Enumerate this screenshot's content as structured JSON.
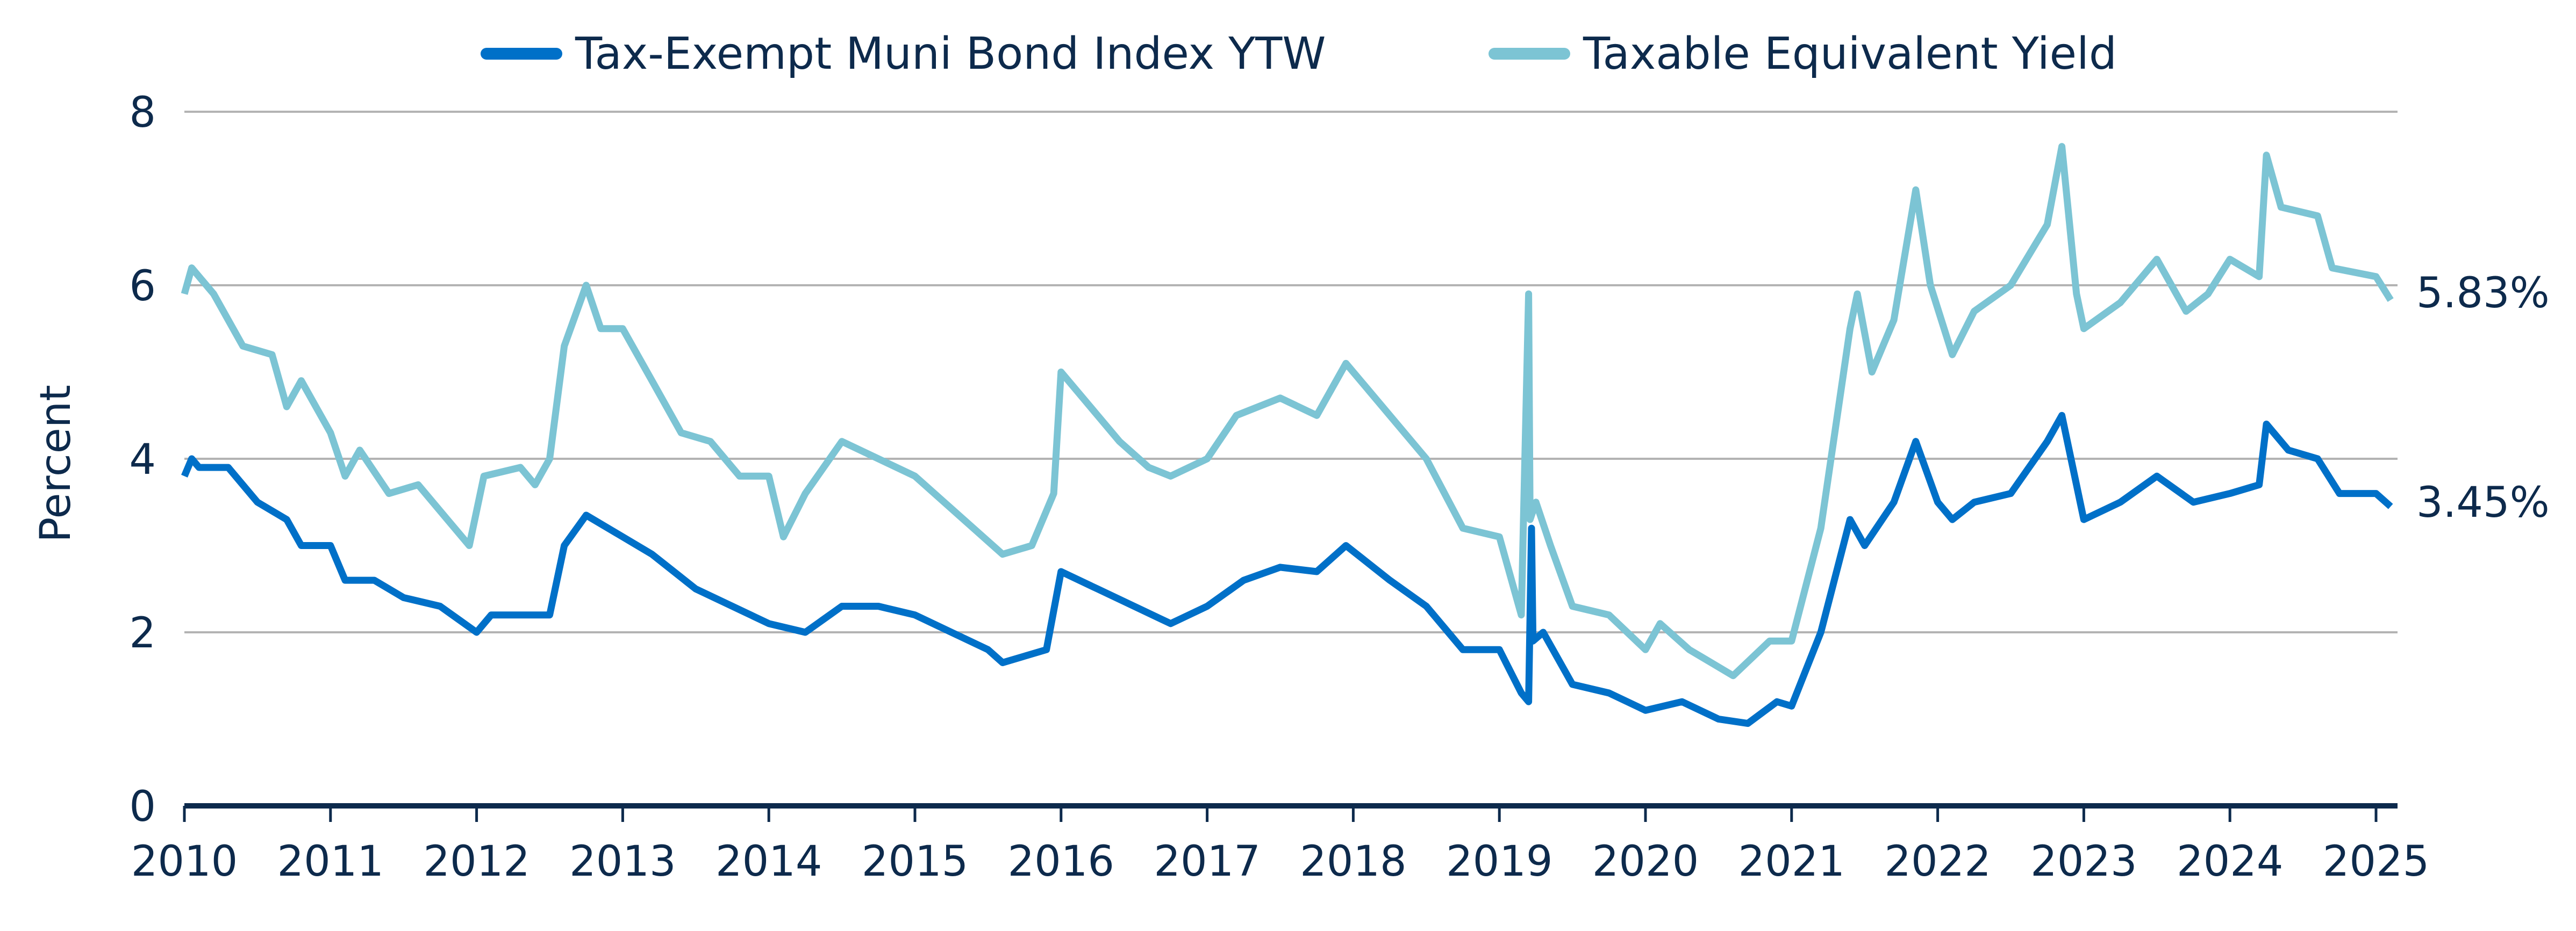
{
  "chart_data": {
    "type": "line",
    "title": "",
    "xlabel": "",
    "ylabel": "Percent",
    "xlim": [
      2010,
      2025.12
    ],
    "ylim": [
      0,
      8
    ],
    "yticks": [
      "0",
      "2",
      "4",
      "6",
      "8"
    ],
    "xticks": [
      "2010",
      "2011",
      "2012",
      "2013",
      "2014",
      "2015",
      "2016",
      "2017",
      "2018",
      "2019",
      "2020",
      "2021",
      "2022",
      "2023",
      "2024",
      "2025"
    ],
    "grid": "horizontal",
    "legend_position": "top",
    "end_labels": [
      "5.83%",
      "3.45%"
    ],
    "series": [
      {
        "name": "Tax-Exempt Muni Bond Index YTW",
        "color": "#0070c8",
        "x": [
          2010.0,
          2010.05,
          2010.1,
          2010.3,
          2010.5,
          2010.7,
          2010.8,
          2011.0,
          2011.1,
          2011.3,
          2011.5,
          2011.75,
          2012.0,
          2012.1,
          2012.4,
          2012.5,
          2012.6,
          2012.75,
          2013.0,
          2013.2,
          2013.5,
          2013.75,
          2014.0,
          2014.25,
          2014.5,
          2014.75,
          2015.0,
          2015.25,
          2015.5,
          2015.6,
          2015.9,
          2016.0,
          2016.25,
          2016.5,
          2016.75,
          2017.0,
          2017.25,
          2017.5,
          2017.75,
          2017.95,
          2018.25,
          2018.5,
          2018.75,
          2019.0,
          2019.15,
          2019.2,
          2019.22,
          2019.23,
          2019.3,
          2019.5,
          2019.75,
          2020.0,
          2020.25,
          2020.5,
          2020.7,
          2020.9,
          2021.0,
          2021.2,
          2021.4,
          2021.5,
          2021.7,
          2021.85,
          2022.0,
          2022.1,
          2022.25,
          2022.5,
          2022.75,
          2022.85,
          2023.0,
          2023.25,
          2023.5,
          2023.75,
          2024.0,
          2024.2,
          2024.25,
          2024.4,
          2024.6,
          2024.75,
          2025.0,
          2025.1
        ],
        "y": [
          3.8,
          4.0,
          3.9,
          3.9,
          3.5,
          3.3,
          3.0,
          3.0,
          2.6,
          2.6,
          2.4,
          2.3,
          2.0,
          2.2,
          2.2,
          2.2,
          3.0,
          3.35,
          3.1,
          2.9,
          2.5,
          2.3,
          2.1,
          2.0,
          2.3,
          2.3,
          2.2,
          2.0,
          1.8,
          1.65,
          1.8,
          2.7,
          2.5,
          2.3,
          2.1,
          2.3,
          2.6,
          2.75,
          2.7,
          3.0,
          2.6,
          2.3,
          1.8,
          1.8,
          1.3,
          1.2,
          3.2,
          1.9,
          2.0,
          1.4,
          1.3,
          1.1,
          1.2,
          1.0,
          0.95,
          1.2,
          1.15,
          2.0,
          3.3,
          3.0,
          3.5,
          4.2,
          3.5,
          3.3,
          3.5,
          3.6,
          4.2,
          4.5,
          3.3,
          3.5,
          3.8,
          3.5,
          3.6,
          3.7,
          4.4,
          4.1,
          4.0,
          3.6,
          3.6,
          3.45
        ]
      },
      {
        "name": "Taxable Equivalent Yield",
        "color": "#7cc4d4",
        "x": [
          2010.0,
          2010.05,
          2010.2,
          2010.4,
          2010.6,
          2010.7,
          2010.8,
          2011.0,
          2011.1,
          2011.2,
          2011.4,
          2011.6,
          2011.8,
          2011.95,
          2012.05,
          2012.3,
          2012.4,
          2012.5,
          2012.6,
          2012.75,
          2012.85,
          2013.0,
          2013.2,
          2013.4,
          2013.6,
          2013.8,
          2014.0,
          2014.1,
          2014.25,
          2014.5,
          2014.75,
          2015.0,
          2015.2,
          2015.4,
          2015.6,
          2015.8,
          2015.95,
          2016.0,
          2016.25,
          2016.4,
          2016.6,
          2016.75,
          2017.0,
          2017.2,
          2017.5,
          2017.75,
          2017.95,
          2018.25,
          2018.5,
          2018.75,
          2019.0,
          2019.15,
          2019.2,
          2019.21,
          2019.25,
          2019.35,
          2019.5,
          2019.75,
          2020.0,
          2020.1,
          2020.3,
          2020.6,
          2020.85,
          2021.0,
          2021.2,
          2021.4,
          2021.45,
          2021.55,
          2021.7,
          2021.85,
          2021.95,
          2022.1,
          2022.25,
          2022.5,
          2022.75,
          2022.85,
          2022.95,
          2023.0,
          2023.25,
          2023.5,
          2023.7,
          2023.85,
          2024.0,
          2024.2,
          2024.25,
          2024.35,
          2024.6,
          2024.7,
          2025.0,
          2025.1
        ],
        "y": [
          5.9,
          6.2,
          5.9,
          5.3,
          5.2,
          4.6,
          4.9,
          4.3,
          3.8,
          4.1,
          3.6,
          3.7,
          3.3,
          3.0,
          3.8,
          3.9,
          3.7,
          4.0,
          5.3,
          6.0,
          5.5,
          5.5,
          4.9,
          4.3,
          4.2,
          3.8,
          3.8,
          3.1,
          3.6,
          4.2,
          4.0,
          3.8,
          3.5,
          3.2,
          2.9,
          3.0,
          3.6,
          5.0,
          4.5,
          4.2,
          3.9,
          3.8,
          4.0,
          4.5,
          4.7,
          4.5,
          5.1,
          4.5,
          4.0,
          3.2,
          3.1,
          2.2,
          5.9,
          3.3,
          3.5,
          3.0,
          2.3,
          2.2,
          1.8,
          2.1,
          1.8,
          1.5,
          1.9,
          1.9,
          3.2,
          5.5,
          5.9,
          5.0,
          5.6,
          7.1,
          6.0,
          5.2,
          5.7,
          6.0,
          6.7,
          7.6,
          5.9,
          5.5,
          5.8,
          6.3,
          5.7,
          5.9,
          6.3,
          6.1,
          7.5,
          6.9,
          6.8,
          6.2,
          6.1,
          5.83
        ]
      }
    ]
  }
}
